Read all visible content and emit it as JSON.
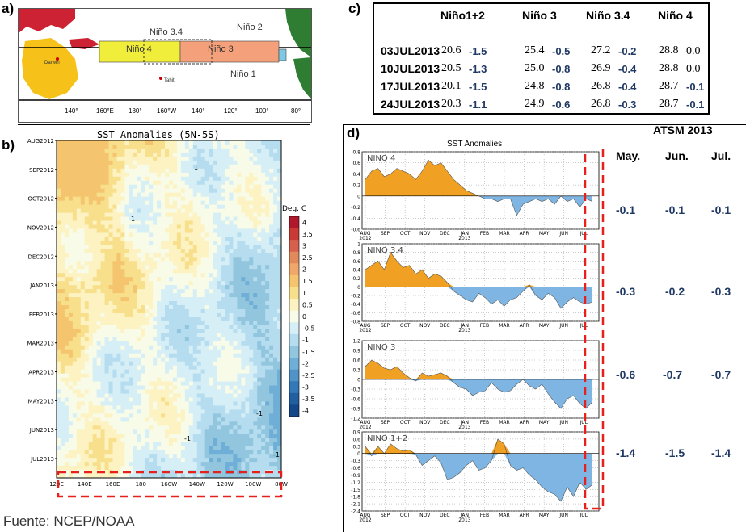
{
  "labels": {
    "a": "a)",
    "b": "b)",
    "c": "c)",
    "d": "d)"
  },
  "map": {
    "regions": [
      "Niño 3.4",
      "Niño 4",
      "Niño 3",
      "Niño 2",
      "Niño 1"
    ],
    "places": [
      "Darwin",
      "Tahiti"
    ],
    "lon_ticks": [
      "140°",
      "160°E",
      "180°",
      "160°W",
      "140°",
      "120°",
      "100°",
      "80°"
    ],
    "colors": {
      "nino4": "#f0ee3a",
      "nino3": "#f4a07a",
      "land_au": "#f6c21a",
      "land_ea": "#cc2233",
      "land_am": "#2e7d32",
      "ocean": "#ffffff"
    }
  },
  "hovmoller": {
    "title": "SST Anomalies (5N-5S)",
    "y_ticks": [
      "AUG2012",
      "SEP2012",
      "OCT2012",
      "NOV2012",
      "DEC2012",
      "JAN2013",
      "FEB2013",
      "MAR2013",
      "APR2013",
      "MAY2013",
      "JUN2013",
      "JUL2013"
    ],
    "x_ticks": [
      "120E",
      "140E",
      "160E",
      "180",
      "160W",
      "140W",
      "120W",
      "100W",
      "80W"
    ],
    "colorbar_title": "Deg. C",
    "colorbar_ticks": [
      "4",
      "3.5",
      "3",
      "2.5",
      "2",
      "1.5",
      "1",
      "0.5",
      "0",
      "-0.5",
      "-1",
      "-1.5",
      "-2",
      "-2.5",
      "-3",
      "-3.5",
      "-4"
    ],
    "contour_labels": [
      "1",
      "1",
      "-1",
      "-1",
      "-1"
    ],
    "colors": [
      "#b2182b",
      "#c93a34",
      "#d6604d",
      "#e08a5c",
      "#f0a86a",
      "#f4c56e",
      "#f8df8c",
      "#fdf2c2",
      "#f7fbe8",
      "#d6eef6",
      "#b5dcef",
      "#92c5de",
      "#6faed6",
      "#4f93c8",
      "#3379b8",
      "#215fa0",
      "#14468a"
    ]
  },
  "table": {
    "headers": [
      "Niño1+2",
      "Niño 3",
      "Niño 3.4",
      "Niño 4"
    ],
    "rows": [
      {
        "date": "03JUL2013",
        "cells": [
          [
            "20.6",
            "-1.5"
          ],
          [
            "25.4",
            "-0.5"
          ],
          [
            "27.2",
            "-0.2"
          ],
          [
            "28.8",
            "0.0"
          ]
        ]
      },
      {
        "date": "10JUL2013",
        "cells": [
          [
            "20.5",
            "-1.3"
          ],
          [
            "25.0",
            "-0.8"
          ],
          [
            "26.9",
            "-0.4"
          ],
          [
            "28.8",
            "0.0"
          ]
        ]
      },
      {
        "date": "17JUL2013",
        "cells": [
          [
            "20.1",
            "-1.5"
          ],
          [
            "24.8",
            "-0.8"
          ],
          [
            "26.8",
            "-0.4"
          ],
          [
            "28.7",
            "-0.1"
          ]
        ]
      },
      {
        "date": "24JUL2013",
        "cells": [
          [
            "20.3",
            "-1.1"
          ],
          [
            "24.9",
            "-0.6"
          ],
          [
            "26.8",
            "-0.3"
          ],
          [
            "28.7",
            "-0.1"
          ]
        ]
      }
    ]
  },
  "atsm": {
    "title": "ATSM 2013",
    "months": [
      "May.",
      "Jun.",
      "Jul."
    ],
    "rows": [
      [
        "-0.1",
        "-0.1",
        "-0.1"
      ],
      [
        "-0.3",
        "-0.2",
        "-0.3"
      ],
      [
        "-0.6",
        "-0.7",
        "-0.7"
      ],
      [
        "-1.4",
        "-1.5",
        "-1.4"
      ]
    ]
  },
  "source": "Fuente: NCEP/NOAA",
  "chart_data": {
    "type": "area",
    "title": "SST Anomalies",
    "x_ticks": [
      "AUG\n2012",
      "SEP",
      "OCT",
      "NOV",
      "DEC",
      "JAN\n2013",
      "FEB",
      "MAR",
      "APR",
      "MAY",
      "JUN",
      "JUL"
    ],
    "positive_color": "#f0a023",
    "negative_color": "#7fb5e3",
    "highlight_color": "#e8201c",
    "series": [
      {
        "name": "NINO 4",
        "yticks": [
          "0.8",
          "0.6",
          "0.4",
          "0.2",
          "0",
          "-0.2",
          "-0.4",
          "-0.6"
        ],
        "ylim": [
          -0.6,
          0.8
        ],
        "values": [
          0.3,
          0.45,
          0.5,
          0.35,
          0.4,
          0.5,
          0.45,
          0.4,
          0.3,
          0.45,
          0.65,
          0.55,
          0.6,
          0.45,
          0.3,
          0.2,
          0.1,
          0.05,
          0.0,
          -0.05,
          -0.05,
          -0.1,
          -0.05,
          -0.05,
          -0.35,
          -0.15,
          -0.1,
          -0.05,
          -0.1,
          -0.05,
          -0.15,
          0.0,
          -0.1,
          -0.05,
          -0.2,
          -0.05,
          -0.1
        ]
      },
      {
        "name": "NINO 3.4",
        "yticks": [
          "1",
          "0.8",
          "0.6",
          "0.4",
          "0.2",
          "0",
          "-0.2",
          "-0.4",
          "-0.6",
          "-0.8"
        ],
        "ylim": [
          -0.8,
          1.0
        ],
        "values": [
          0.4,
          0.5,
          0.6,
          0.4,
          0.8,
          0.6,
          0.45,
          0.5,
          0.3,
          0.4,
          0.2,
          0.3,
          0.25,
          0.1,
          -0.1,
          -0.2,
          -0.3,
          -0.35,
          -0.15,
          -0.25,
          -0.4,
          -0.3,
          -0.45,
          -0.3,
          -0.25,
          -0.1,
          0.05,
          -0.2,
          -0.3,
          -0.15,
          -0.25,
          -0.5,
          -0.35,
          -0.25,
          -0.35,
          -0.4,
          -0.35
        ]
      },
      {
        "name": "NINO 3",
        "yticks": [
          "1.2",
          "0.9",
          "0.6",
          "0.3",
          "0",
          "-0.3",
          "-0.6",
          "-0.9",
          "-1.2"
        ],
        "ylim": [
          -1.2,
          1.2
        ],
        "values": [
          0.4,
          0.6,
          0.5,
          0.35,
          0.3,
          0.4,
          0.2,
          0.05,
          -0.05,
          0.2,
          0.1,
          0.15,
          0.2,
          0.1,
          -0.1,
          -0.25,
          -0.3,
          -0.5,
          -0.4,
          -0.35,
          -0.1,
          -0.3,
          -0.4,
          -0.35,
          -0.15,
          0.0,
          -0.2,
          -0.3,
          -0.15,
          -0.45,
          -0.7,
          -0.9,
          -0.6,
          -0.5,
          -0.75,
          -0.9,
          -0.7
        ]
      },
      {
        "name": "NINO 1+2",
        "yticks": [
          "0.9",
          "0.6",
          "0.3",
          "0",
          "-0.3",
          "-0.6",
          "-0.9",
          "-1.2",
          "-1.5",
          "-1.8",
          "-2.1",
          "-2.4"
        ],
        "ylim": [
          -2.4,
          0.9
        ],
        "values": [
          0.3,
          -0.1,
          0.3,
          0.0,
          0.4,
          0.2,
          0.1,
          0.15,
          -0.05,
          -0.5,
          -0.3,
          -0.1,
          -0.4,
          -1.1,
          -1.0,
          -0.8,
          -0.5,
          -0.3,
          -0.7,
          -0.6,
          -0.3,
          0.6,
          0.4,
          -0.5,
          -0.7,
          -0.6,
          -0.9,
          -1.1,
          -1.4,
          -1.6,
          -1.7,
          -2.0,
          -1.4,
          -1.8,
          -1.2,
          -1.5,
          -1.3
        ]
      }
    ]
  }
}
